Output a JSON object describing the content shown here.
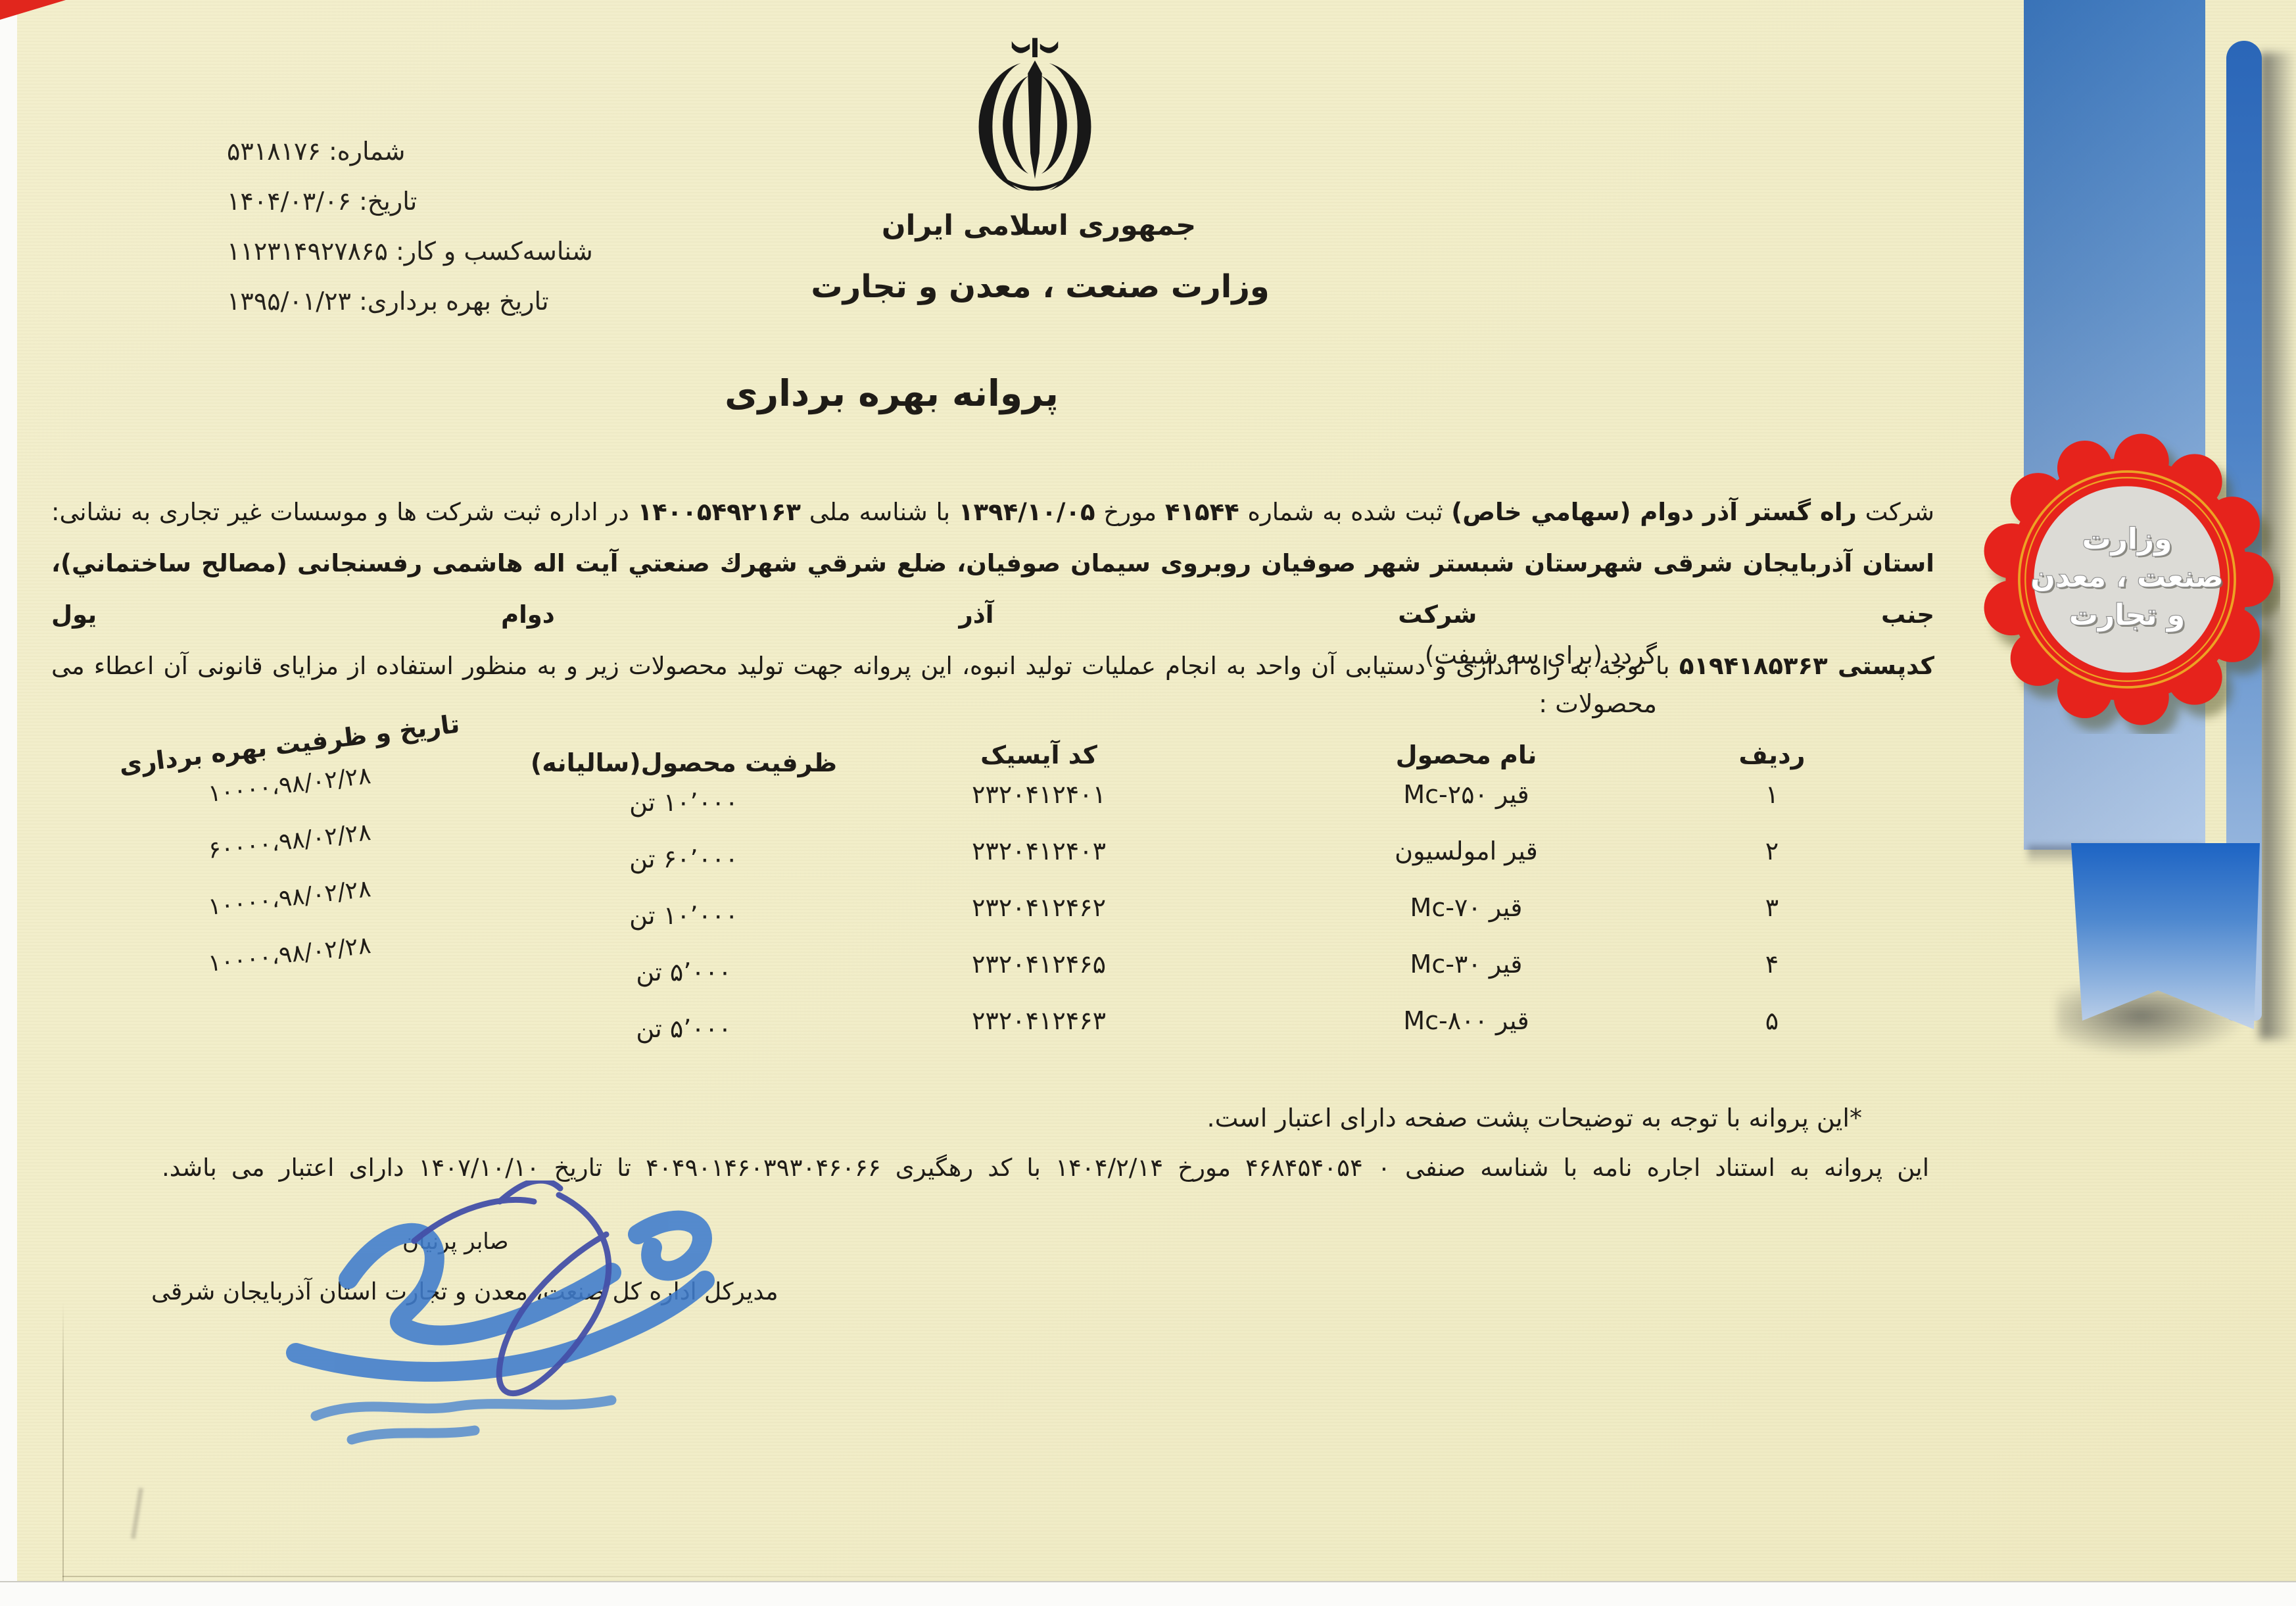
{
  "colors": {
    "paper": "#f1edc8",
    "ribbon_blue": "#3e7dc5",
    "ribbon_dark_blue": "#1d64c4",
    "seal_red": "#e6231c",
    "seal_gold": "#eda224",
    "seal_center_gray": "#dcdbd6",
    "pen_blue": "#4450a8",
    "stamp_blue": "#3f7ccd",
    "ink_black": "#1f1c17"
  },
  "icons": {
    "emblem": "iran-allah-emblem",
    "seal": "ministry-rosette-seal"
  },
  "meta": {
    "lines": [
      "شماره: ۵۳۱۸۱۷۶",
      "تاریخ: ۱۴۰۴/۰۳/۰۶",
      "شناسه‌کسب و کار: ۱۱۲۳۱۴۹۲۷۸۶۵",
      "تاریخ بهره برداری: ۱۳۹۵/۰۱/۲۳"
    ]
  },
  "header": {
    "country": "جمهوری اسلامی ایران",
    "ministry": "وزارت صنعت ، معدن و تجارت",
    "title": "پروانه بهره برداری"
  },
  "body": {
    "lines": [
      {
        "runs": [
          {
            "t": "شرکت ",
            "b": 0
          },
          {
            "t": "راه گستر آذر دوام (سهامي خاص)",
            "b": 1
          },
          {
            "t": " ثبت شده به شماره ",
            "b": 0
          },
          {
            "t": "۴۱۵۴۴",
            "b": 1
          },
          {
            "t": " مورخ ",
            "b": 0
          },
          {
            "t": "۱۳۹۴/۱۰/۰۵",
            "b": 1
          },
          {
            "t": " با شناسه ملی ",
            "b": 0
          },
          {
            "t": "۱۴۰۰۵۴۹۲۱۶۳",
            "b": 1
          },
          {
            "t": " در اداره ثبت شرکت ها و موسسات غیر تجاری به نشانی:",
            "b": 0
          }
        ]
      },
      {
        "runs": [
          {
            "t": "استان آذربایجان شرقی شهرستان شبستر شهر صوفیان روبروی سیمان صوفیان، ضلع شرقي شهرك صنعتي آیت اله هاشمی رفسنجانی (مصالح ساختماني)، جنب شرکت آذر دوام یول",
            "b": 1
          }
        ]
      },
      {
        "runs": [
          {
            "t": "کدپستی ",
            "b": 1
          },
          {
            "t": "۵۱۹۴۱۸۵۳۶۳",
            "b": 1
          },
          {
            "t": " با توجه به راه اندازی و دستیابی آن واحد به انجام عملیات تولید انبوه، این پروانه جهت تولید محصولات زیر و به منظور استفاده از مزایای قانونی آن اعطاء می",
            "b": 0
          }
        ]
      }
    ],
    "closing_line": "گردد.(برای سه شیفت)",
    "products_label": "محصولات :"
  },
  "table": {
    "headers": [
      "ردیف",
      "نام محصول",
      "کد آیسیک",
      "ظرفیت محصول(سالیانه)",
      "تاریخ و ظرفیت بهره برداری"
    ],
    "rows": [
      {
        "row": "۱",
        "product": "قیر",
        "product_code": "Mc-۲۵۰",
        "isic": "۲۳۲۰۴۱۲۴۰۱",
        "capacity": "۱۰٬۰۰۰ تن",
        "commission": "۱۰۰۰۰،۹۸/۰۲/۲۸"
      },
      {
        "row": "۲",
        "product": "قیر امولسیون",
        "product_code": "",
        "isic": "۲۳۲۰۴۱۲۴۰۳",
        "capacity": "۶۰٬۰۰۰ تن",
        "commission": "۶۰۰۰۰،۹۸/۰۲/۲۸"
      },
      {
        "row": "۳",
        "product": "قیر",
        "product_code": "Mc-۷۰",
        "isic": "۲۳۲۰۴۱۲۴۶۲",
        "capacity": "۱۰٬۰۰۰ تن",
        "commission": "۱۰۰۰۰،۹۸/۰۲/۲۸"
      },
      {
        "row": "۴",
        "product": "قیر",
        "product_code": "Mc-۳۰",
        "isic": "۲۳۲۰۴۱۲۴۶۵",
        "capacity": "۵٬۰۰۰ تن",
        "commission": "۱۰۰۰۰،۹۸/۰۲/۲۸"
      },
      {
        "row": "۵",
        "product": "قیر",
        "product_code": "Mc-۸۰۰",
        "isic": "۲۳۲۰۴۱۲۴۶۳",
        "capacity": "۵٬۰۰۰ تن",
        "commission": ""
      }
    ]
  },
  "notes": {
    "back_note": "*این پروانه با توجه به توضیحات پشت صفحه دارای اعتبار است.",
    "validity_note": "این پروانه به استناد اجاره نامه با شناسه صنفی ۰ ۴۶۸۴۵۴۰۵۴ مورخ ۱۴۰۴/۲/۱۴ با کد رهگیری ۴۰۴۹۰۱۴۶۰۳۹۳۰۴۶۰۶۶ تا تاریخ ۱۴۰۷/۱۰/۱۰ دارای اعتبار می باشد."
  },
  "signature": {
    "name": "صابر پرنیان",
    "title": "مدیرکل اداره کل صنعت، معدن و تجارت استان آذربایجان شرقی"
  },
  "seal": {
    "line1": "وزارت",
    "line2": "صنعت ، معدن",
    "line3": "و تجارت"
  }
}
